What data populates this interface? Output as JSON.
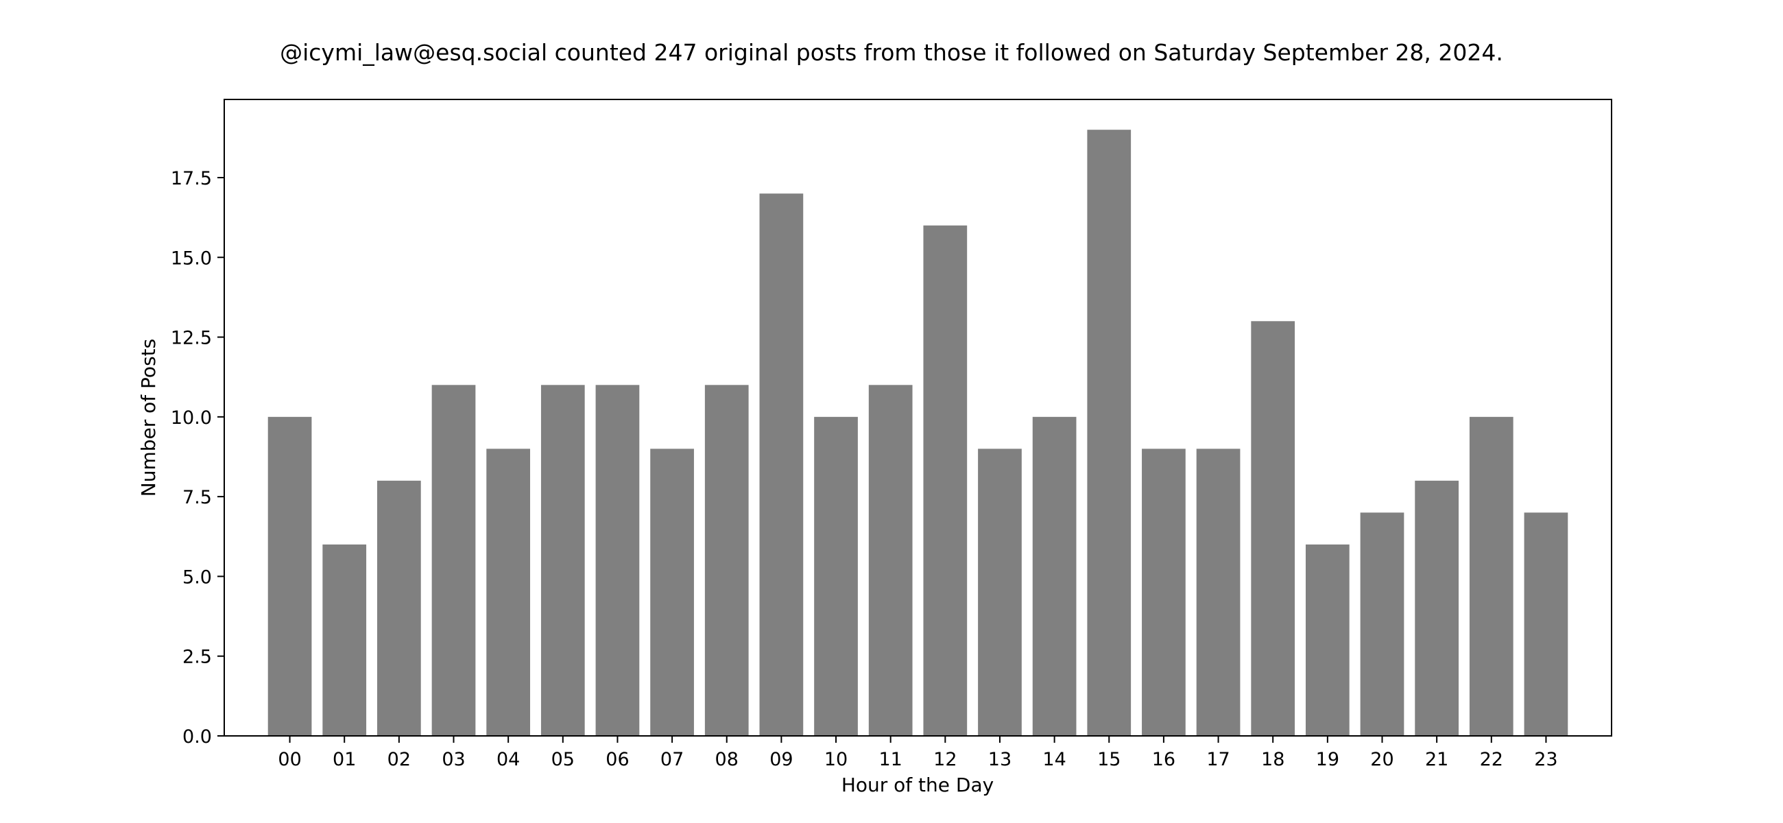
{
  "chart_data": {
    "type": "bar",
    "title": "@icymi_law@esq.social counted 247 original posts from those it followed on Saturday September 28, 2024.",
    "xlabel": "Hour of the Day",
    "ylabel": "Number of Posts",
    "categories": [
      "00",
      "01",
      "02",
      "03",
      "04",
      "05",
      "06",
      "07",
      "08",
      "09",
      "10",
      "11",
      "12",
      "13",
      "14",
      "15",
      "16",
      "17",
      "18",
      "19",
      "20",
      "21",
      "22",
      "23"
    ],
    "values": [
      10,
      6,
      8,
      11,
      9,
      11,
      11,
      9,
      11,
      17,
      10,
      11,
      16,
      9,
      10,
      19,
      9,
      9,
      13,
      6,
      7,
      8,
      10,
      7
    ],
    "ylim": [
      0,
      19.95
    ],
    "yticks": [
      "0.0",
      "2.5",
      "5.0",
      "7.5",
      "10.0",
      "12.5",
      "15.0",
      "17.5"
    ],
    "bar_color": "#808080",
    "grid": false,
    "legend": "none"
  }
}
